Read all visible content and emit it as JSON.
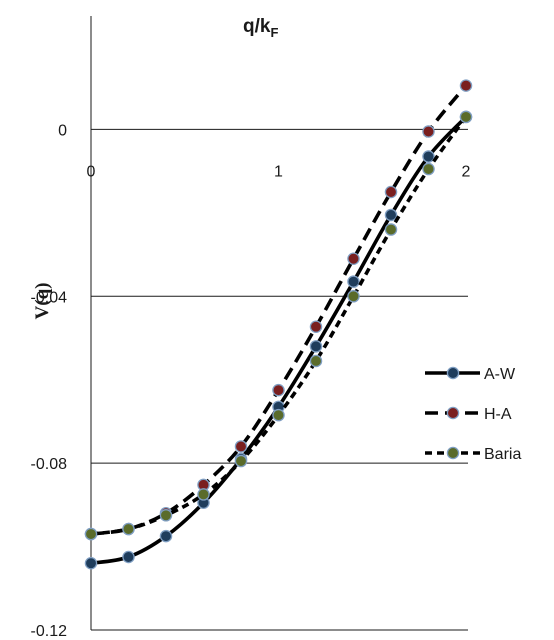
{
  "chart_data": {
    "type": "line",
    "title": "q/k",
    "title_sub": "F",
    "ylabel": "V(q)",
    "xlabel": "",
    "xlim": [
      0,
      2
    ],
    "ylim": [
      -0.12,
      0.02
    ],
    "x_ticks": [
      "0",
      "1",
      "2"
    ],
    "y_ticks": [
      "0",
      "-0.04",
      "-0.08",
      "-0.12"
    ],
    "grid": "horizontal",
    "legend_position": "right",
    "x": [
      0,
      0.2,
      0.4,
      0.6,
      0.8,
      1.0,
      1.2,
      1.4,
      1.6,
      1.8,
      2.0
    ],
    "series": [
      {
        "name": "A-W",
        "line_style": "solid",
        "marker_color": "#1f3d5c",
        "values": [
          -0.104,
          -0.1025,
          -0.0975,
          -0.0895,
          -0.079,
          -0.0665,
          -0.052,
          -0.0365,
          -0.0205,
          -0.0065,
          0.003
        ]
      },
      {
        "name": "H-A",
        "line_style": "long-dash",
        "marker_color": "#7a1f1f",
        "values": [
          -0.097,
          -0.0958,
          -0.092,
          -0.0852,
          -0.076,
          -0.0625,
          -0.0473,
          -0.031,
          -0.015,
          -0.0005,
          0.0105
        ]
      },
      {
        "name": "Baria",
        "line_style": "short-dash",
        "marker_color": "#5a6b2a",
        "values": [
          -0.097,
          -0.0958,
          -0.0925,
          -0.0875,
          -0.0795,
          -0.0685,
          -0.0555,
          -0.04,
          -0.024,
          -0.0095,
          0.003
        ]
      }
    ]
  }
}
